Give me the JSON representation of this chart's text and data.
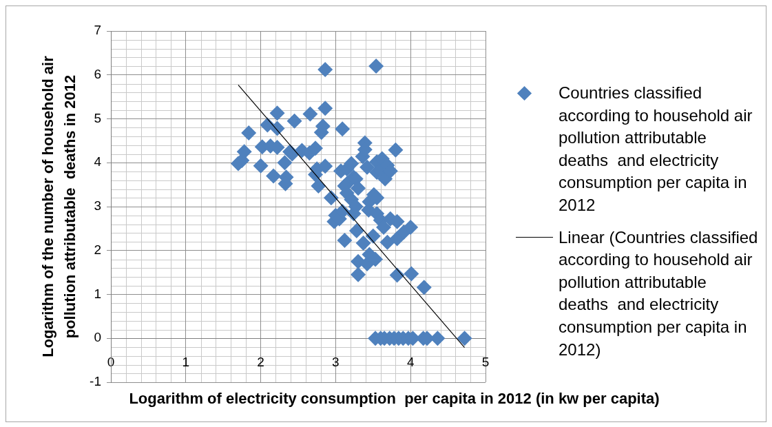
{
  "chart_data": {
    "type": "scatter",
    "xlabel": "Logarithm of electricity consumption  per capita in 2012 (in kw per capita)",
    "ylabel": "Logarithm of the number of household air pollution attributable  deaths in 2012",
    "xlim": [
      0,
      5
    ],
    "ylim": [
      -1,
      7
    ],
    "xticks": [
      0,
      1,
      2,
      3,
      4,
      5
    ],
    "yticks": [
      -1,
      0,
      1,
      2,
      3,
      4,
      5,
      6,
      7
    ],
    "grid": true,
    "legend": "right",
    "marker": "diamond",
    "series": [
      {
        "name": "Countries classified according to household air pollution attributable deaths  and electricity consumption per capita in 2012",
        "color": "#4f81bd",
        "x": [
          1.7,
          1.75,
          1.78,
          1.84,
          2.0,
          2.02,
          2.09,
          2.13,
          2.17,
          2.22,
          2.22,
          2.22,
          2.32,
          2.34,
          2.33,
          2.39,
          2.42,
          2.45,
          2.55,
          2.65,
          2.66,
          2.73,
          2.73,
          2.75,
          2.77,
          2.81,
          2.83,
          2.86,
          2.86,
          2.86,
          2.94,
          2.98,
          3.0,
          3.05,
          3.09,
          3.12,
          3.07,
          3.09,
          3.15,
          3.15,
          3.12,
          3.15,
          3.21,
          3.21,
          3.24,
          3.24,
          3.27,
          3.27,
          3.28,
          3.3,
          3.3,
          3.3,
          3.36,
          3.37,
          3.39,
          3.39,
          3.42,
          3.42,
          3.44,
          3.45,
          3.45,
          3.5,
          3.51,
          3.53,
          3.54,
          3.55,
          3.55,
          3.55,
          3.55,
          3.6,
          3.6,
          3.62,
          3.64,
          3.66,
          3.69,
          3.69,
          3.73,
          3.73,
          3.8,
          3.82,
          3.82,
          3.82,
          3.91,
          4.0,
          4.01,
          4.18,
          3.53,
          3.6,
          3.65,
          3.72,
          3.78,
          3.84,
          3.9,
          3.97,
          4.03,
          4.17,
          4.22,
          4.36,
          4.72
        ],
        "values": [
          3.98,
          4.05,
          4.25,
          4.68,
          3.93,
          4.36,
          4.86,
          4.38,
          3.7,
          5.13,
          4.78,
          4.35,
          4.0,
          3.67,
          3.52,
          4.25,
          4.2,
          4.95,
          4.28,
          4.22,
          5.11,
          4.33,
          3.73,
          3.86,
          3.47,
          4.69,
          4.83,
          5.24,
          6.12,
          3.92,
          3.2,
          2.66,
          2.8,
          2.72,
          2.89,
          2.23,
          3.81,
          4.77,
          3.86,
          3.52,
          3.47,
          3.31,
          3.98,
          3.16,
          3.67,
          2.84,
          3.63,
          3.0,
          2.45,
          3.42,
          1.75,
          1.45,
          4.14,
          2.17,
          4.45,
          4.3,
          3.9,
          1.7,
          2.92,
          3.11,
          1.91,
          2.33,
          3.27,
          1.8,
          6.2,
          4.02,
          3.78,
          3.2,
          2.84,
          3.83,
          2.69,
          4.09,
          2.53,
          3.63,
          3.94,
          2.19,
          3.81,
          2.72,
          4.29,
          2.66,
          2.27,
          1.44,
          2.42,
          2.53,
          1.47,
          1.16,
          0,
          0,
          0,
          0,
          0,
          0,
          0,
          0,
          0,
          0,
          0,
          0,
          0
        ]
      },
      {
        "name": "Linear (Countries classified according to household air pollution attributable deaths  and electricity consumption per capita in 2012)",
        "type": "line",
        "marker": "none",
        "color": "#000000",
        "x": [
          1.7,
          4.72
        ],
        "values": [
          5.77,
          -0.21
        ]
      }
    ]
  }
}
